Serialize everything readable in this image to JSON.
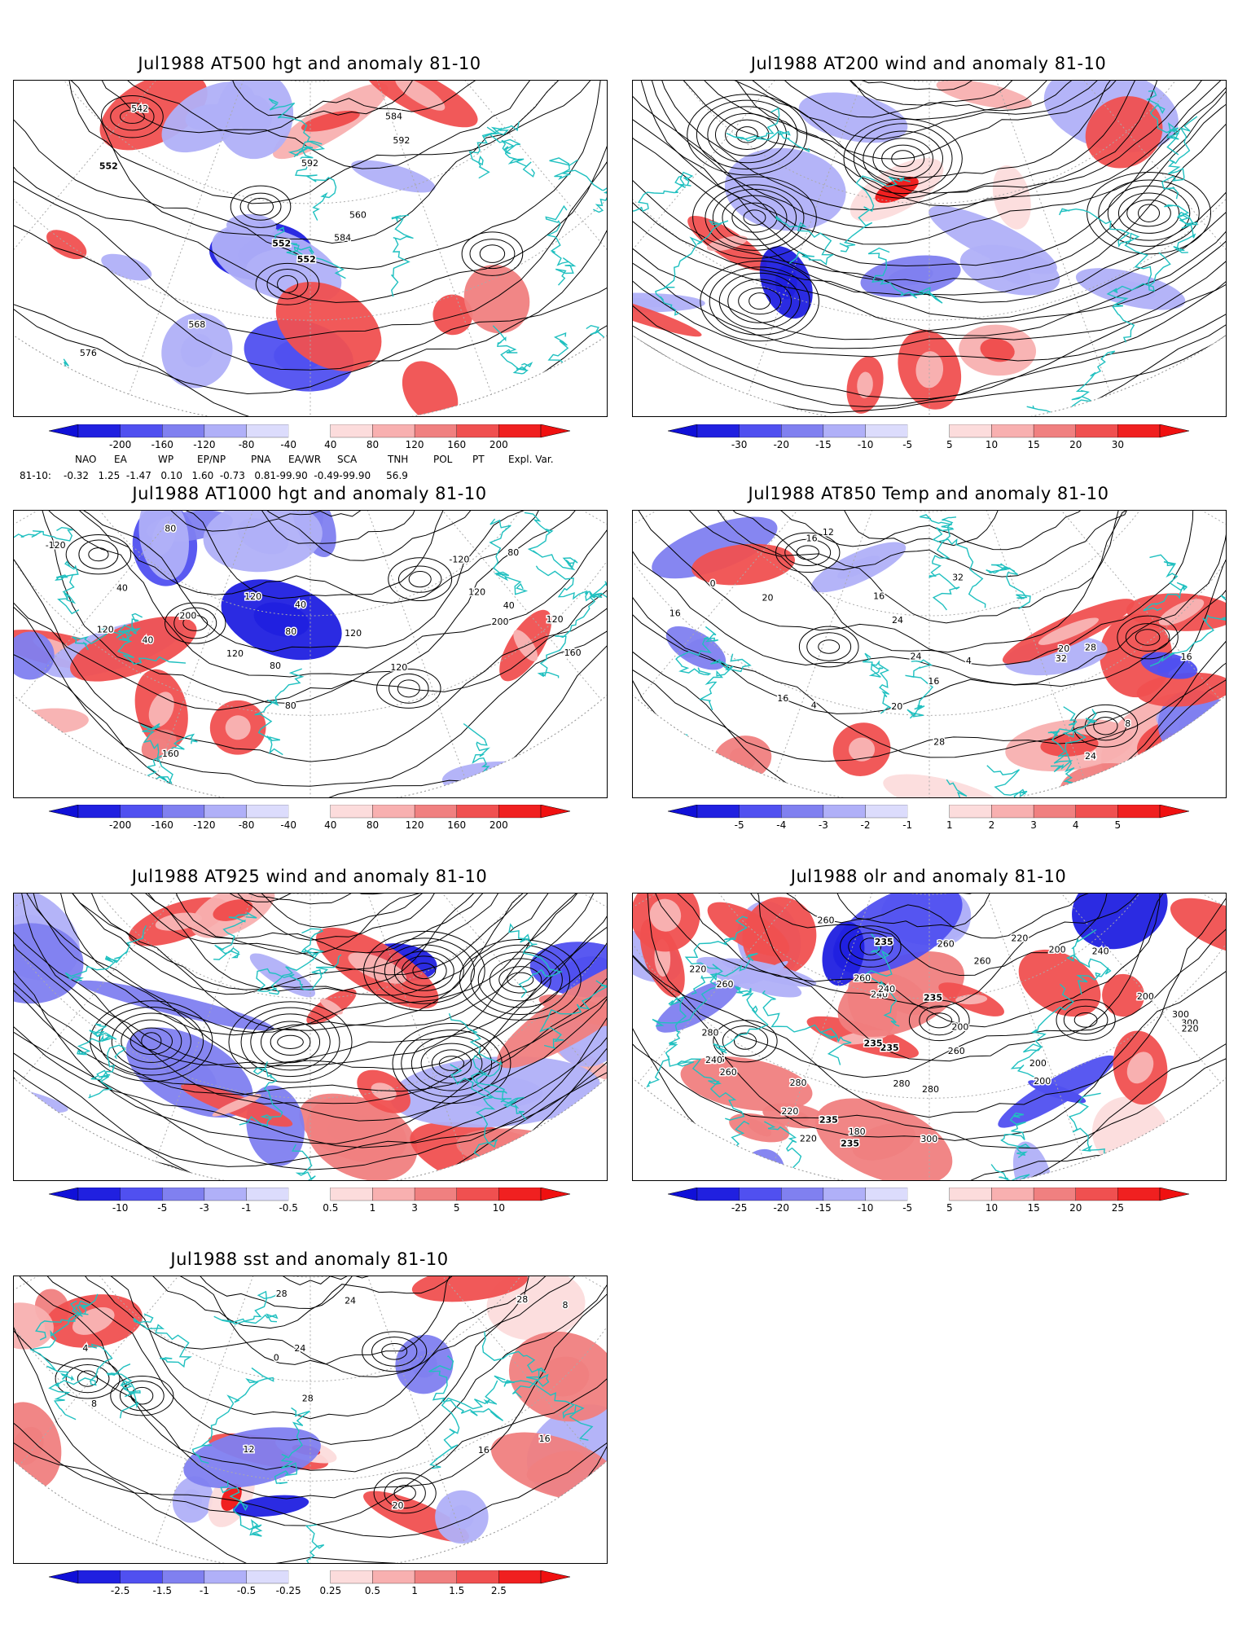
{
  "panels": [
    {
      "id": "p1",
      "title": "Jul1988 AT500 hgt and anomaly 81-10",
      "variable": "hgt",
      "labels": [
        "552",
        "552",
        "552",
        "576",
        "560",
        "568",
        "584",
        "592",
        "592",
        "584",
        "542"
      ],
      "colorbar": {
        "ticks": [
          "-200",
          "-160",
          "-120",
          "-80",
          "-40",
          "40",
          "80",
          "120",
          "160",
          "200"
        ]
      }
    },
    {
      "id": "p2",
      "title": "Jul1988 AT200 wind and anomaly 81-10",
      "variable": "wind",
      "labels": [],
      "colorbar": {
        "ticks": [
          "-30",
          "-20",
          "-15",
          "-10",
          "-5",
          "5",
          "10",
          "15",
          "20",
          "30"
        ]
      }
    },
    {
      "id": "p3",
      "title": "Jul1988 AT1000 hgt and anomaly 81-10",
      "variable": "hgt",
      "labels": [
        "120",
        "80",
        "120",
        "40",
        "120",
        "80",
        "160",
        "80",
        "40",
        "120",
        "200",
        "40",
        "120",
        "200",
        "120",
        "80",
        "160",
        "80",
        "120",
        "-120",
        "-120",
        "40"
      ],
      "colorbar": {
        "ticks": [
          "-200",
          "-160",
          "-120",
          "-80",
          "-40",
          "40",
          "80",
          "120",
          "160",
          "200"
        ]
      }
    },
    {
      "id": "p4",
      "title": "Jul1988 AT850 Temp and anomaly 81-10",
      "variable": "temp",
      "labels": [
        "20",
        "0",
        "24",
        "16",
        "4",
        "32",
        "16",
        "4",
        "8",
        "32",
        "12",
        "20",
        "24",
        "28",
        "16",
        "28",
        "16",
        "24",
        "16",
        "20",
        "16"
      ],
      "colorbar": {
        "ticks": [
          "-5",
          "-4",
          "-3",
          "-2",
          "-1",
          "1",
          "2",
          "3",
          "4",
          "5"
        ]
      }
    },
    {
      "id": "p5",
      "title": "Jul1988 AT925 wind and anomaly 81-10",
      "variable": "wind",
      "labels": [],
      "colorbar": {
        "ticks": [
          "-10",
          "-5",
          "-3",
          "-1",
          "-0.5",
          "0.5",
          "1",
          "3",
          "5",
          "10"
        ]
      }
    },
    {
      "id": "p6",
      "title": "Jul1988 olr and anomaly 81-10",
      "variable": "olr",
      "labels": [
        "220",
        "235",
        "260",
        "280",
        "235",
        "200",
        "260",
        "300",
        "180",
        "260",
        "240",
        "235",
        "220",
        "200",
        "200",
        "240",
        "220",
        "280",
        "235",
        "260",
        "240",
        "260",
        "280",
        "300",
        "300",
        "235",
        "200",
        "220",
        "260",
        "280",
        "235",
        "200",
        "220",
        "240",
        "235",
        "260"
      ],
      "colorbar": {
        "ticks": [
          "-25",
          "-20",
          "-15",
          "-10",
          "-5",
          "5",
          "10",
          "15",
          "20",
          "25"
        ]
      }
    },
    {
      "id": "p7",
      "title": "Jul1988 sst and anomaly 81-10",
      "variable": "sst",
      "labels": [
        "28",
        "4",
        "0",
        "24",
        "8",
        "16",
        "12",
        "20",
        "8",
        "16",
        "28",
        "24",
        "28"
      ],
      "colorbar": {
        "ticks": [
          "-2.5",
          "-1.5",
          "-1",
          "-0.5",
          "-0.25",
          "0.25",
          "0.5",
          "1",
          "1.5",
          "2.5"
        ]
      }
    }
  ],
  "teleconnection": {
    "headers": [
      "NAO",
      "EA",
      "WP",
      "EP/NP",
      "PNA",
      "EA/WR",
      "SCA",
      "TNH",
      "POL",
      "PT",
      "Expl. Var."
    ],
    "row_label": "81-10:",
    "values": "-0.32   1.25  -1.47   0.10   1.60  -0.73   0.81-99.90  -0.49-99.90     56.9"
  },
  "colors": {
    "coast": "#20c0c0",
    "contour": "#000000",
    "neg": [
      "#2020e0",
      "#5050f0",
      "#8080f0",
      "#b0b0f8",
      "#dcdcfc"
    ],
    "pos": [
      "#fcdcdc",
      "#f8b0b0",
      "#f08080",
      "#f05050",
      "#f02020"
    ]
  }
}
